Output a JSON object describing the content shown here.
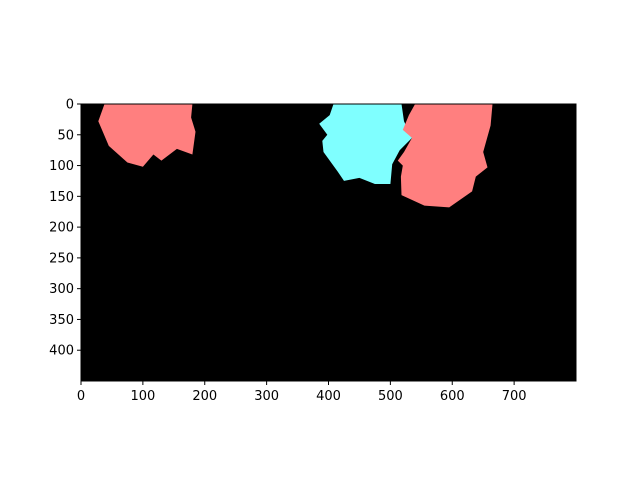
{
  "chart_data": {
    "type": "image",
    "title": "",
    "xlabel": "",
    "ylabel": "",
    "xlim": [
      0,
      800
    ],
    "ylim": [
      450,
      0
    ],
    "x_ticks": [
      0,
      100,
      200,
      300,
      400,
      500,
      600,
      700
    ],
    "y_ticks": [
      0,
      50,
      100,
      150,
      200,
      250,
      300,
      350,
      400
    ],
    "background_color": "#000000",
    "grid": false,
    "legend": "none",
    "regions": [
      {
        "color": "#ff7f7f",
        "points": [
          [
            38,
            0
          ],
          [
            180,
            0
          ],
          [
            178,
            22
          ],
          [
            185,
            45
          ],
          [
            180,
            82
          ],
          [
            155,
            73
          ],
          [
            130,
            92
          ],
          [
            117,
            82
          ],
          [
            100,
            102
          ],
          [
            75,
            95
          ],
          [
            45,
            68
          ],
          [
            28,
            28
          ]
        ]
      },
      {
        "color": "#7fffff",
        "points": [
          [
            408,
            0
          ],
          [
            518,
            0
          ],
          [
            522,
            28
          ],
          [
            535,
            55
          ],
          [
            515,
            75
          ],
          [
            503,
            98
          ],
          [
            500,
            130
          ],
          [
            475,
            130
          ],
          [
            450,
            120
          ],
          [
            425,
            125
          ],
          [
            415,
            110
          ],
          [
            392,
            78
          ],
          [
            390,
            60
          ],
          [
            398,
            50
          ],
          [
            385,
            32
          ],
          [
            402,
            18
          ]
        ]
      },
      {
        "color": "#ff7f7f",
        "points": [
          [
            540,
            0
          ],
          [
            665,
            0
          ],
          [
            662,
            35
          ],
          [
            650,
            78
          ],
          [
            657,
            103
          ],
          [
            638,
            118
          ],
          [
            632,
            142
          ],
          [
            595,
            168
          ],
          [
            555,
            165
          ],
          [
            518,
            148
          ],
          [
            517,
            118
          ],
          [
            520,
            100
          ],
          [
            512,
            92
          ],
          [
            522,
            78
          ],
          [
            535,
            55
          ],
          [
            520,
            42
          ],
          [
            530,
            18
          ]
        ]
      }
    ]
  }
}
